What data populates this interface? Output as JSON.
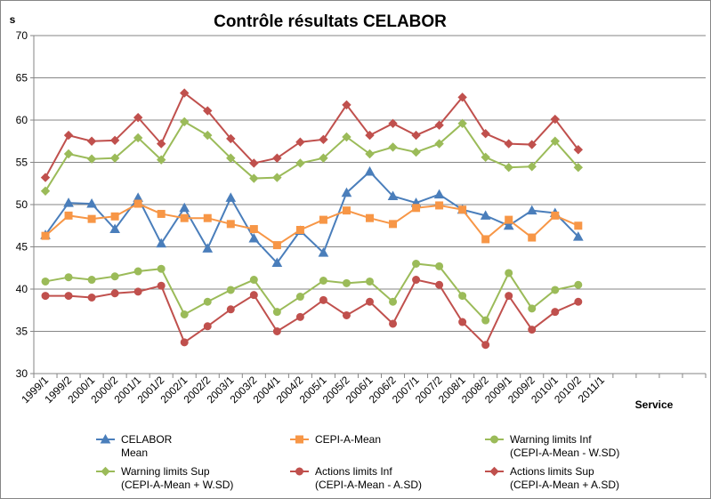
{
  "chart_data": {
    "type": "line",
    "title": "Contrôle résultats CELABOR",
    "ylabel": "s",
    "xlabel": "Service",
    "ylim": [
      30,
      70
    ],
    "yticks": [
      30,
      35,
      40,
      45,
      50,
      55,
      60,
      65,
      70
    ],
    "grid": true,
    "legend_position": "bottom",
    "categories": [
      "1999/1",
      "1999/2",
      "2000/1",
      "2000/2",
      "2001/1",
      "2001/2",
      "2002/1",
      "2002/2",
      "2003/1",
      "2003/2",
      "2004/1",
      "2004/2",
      "2005/1",
      "2005/2",
      "2006/1",
      "2006/2",
      "2007/1",
      "2007/2",
      "2008/1",
      "2008/2",
      "2009/1",
      "2009/2",
      "2010/1",
      "2010/2",
      "2011/1"
    ],
    "x_extra_slots": 4,
    "series": [
      {
        "name": "CELABOR\nMean",
        "color": "#4A7EBB",
        "marker": "triangle",
        "values": [
          46.4,
          50.2,
          50.1,
          47.1,
          50.8,
          45.4,
          49.6,
          44.8,
          50.8,
          46.0,
          43.1,
          46.9,
          44.3,
          51.4,
          53.9,
          51.0,
          50.2,
          51.2,
          49.4,
          48.7,
          47.5,
          49.3,
          49.0,
          46.2,
          null
        ]
      },
      {
        "name": "CEPI-A-Mean",
        "color": "#F79646",
        "marker": "square",
        "values": [
          46.3,
          48.7,
          48.3,
          48.6,
          50.1,
          48.9,
          48.4,
          48.4,
          47.7,
          47.1,
          45.2,
          47.0,
          48.2,
          49.3,
          48.4,
          47.7,
          49.6,
          49.9,
          49.4,
          45.9,
          48.2,
          46.1,
          48.7,
          47.5,
          null
        ]
      },
      {
        "name": "Warning limits Inf\n(CEPI-A-Mean - W.SD)",
        "color": "#9BBB59",
        "marker": "circle",
        "values": [
          40.9,
          41.4,
          41.1,
          41.5,
          42.1,
          42.4,
          37.0,
          38.5,
          39.9,
          41.1,
          37.3,
          39.1,
          41.0,
          40.7,
          40.9,
          38.5,
          43.0,
          42.7,
          39.2,
          36.3,
          41.9,
          37.7,
          39.9,
          40.5,
          null
        ]
      },
      {
        "name": "Warning limits Sup\n(CEPI-A-Mean + W.SD)",
        "color": "#9BBB59",
        "marker": "diamond",
        "values": [
          51.6,
          56.0,
          55.4,
          55.5,
          57.9,
          55.3,
          59.8,
          58.2,
          55.5,
          53.1,
          53.2,
          54.9,
          55.5,
          58.0,
          56.0,
          56.8,
          56.2,
          57.2,
          59.6,
          55.6,
          54.4,
          54.5,
          57.5,
          54.4,
          null
        ]
      },
      {
        "name": "Actions limits Inf\n(CEPI-A-Mean - A.SD)",
        "color": "#C0504D",
        "marker": "circle",
        "values": [
          39.2,
          39.2,
          39.0,
          39.5,
          39.7,
          40.4,
          33.7,
          35.6,
          37.6,
          39.3,
          35.0,
          36.7,
          38.7,
          36.9,
          38.5,
          35.9,
          41.1,
          40.5,
          36.1,
          33.4,
          39.2,
          35.2,
          37.3,
          38.5,
          null
        ]
      },
      {
        "name": "Actions limits Sup\n(CEPI-A-Mean + A.SD)",
        "color": "#C0504D",
        "marker": "diamond",
        "values": [
          53.2,
          58.2,
          57.5,
          57.6,
          60.3,
          57.2,
          63.2,
          61.1,
          57.8,
          54.9,
          55.5,
          57.4,
          57.7,
          61.8,
          58.2,
          59.6,
          58.2,
          59.4,
          62.7,
          58.4,
          57.2,
          57.1,
          60.1,
          56.5,
          null
        ]
      }
    ]
  }
}
